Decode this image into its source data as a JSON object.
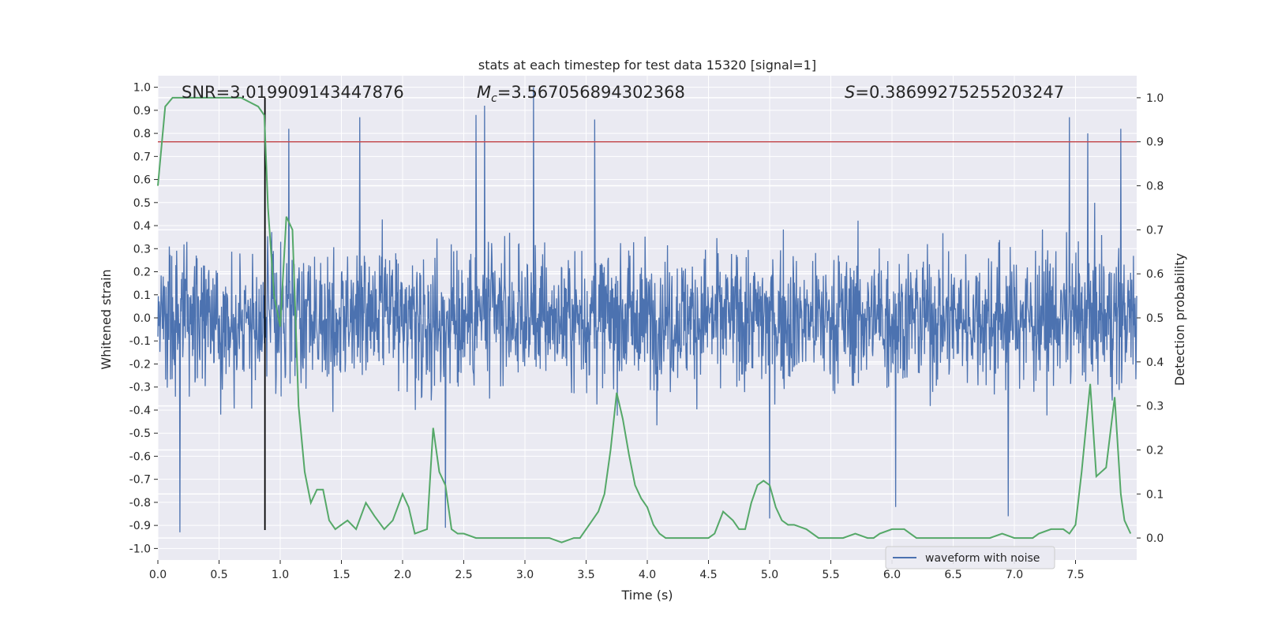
{
  "chart_data": {
    "type": "line",
    "title": "stats at each timestep for test data 15320 [signal=1]",
    "xlabel": "Time (s)",
    "ylabel_left": "Whitened strain",
    "ylabel_right": "Detection probability",
    "xlim": [
      0.0,
      8.0
    ],
    "ylim_left": [
      -1.05,
      1.05
    ],
    "ylim_right": [
      -0.05,
      1.05
    ],
    "x_ticks": [
      "0.0",
      "0.5",
      "1.0",
      "1.5",
      "2.0",
      "2.5",
      "3.0",
      "3.5",
      "4.0",
      "4.5",
      "5.0",
      "5.5",
      "6.0",
      "6.5",
      "7.0",
      "7.5"
    ],
    "y_ticks_left": [
      "1.0",
      "0.9",
      "0.8",
      "0.7",
      "0.6",
      "0.5",
      "0.4",
      "0.3",
      "0.2",
      "0.1",
      "0.0",
      "-0.1",
      "-0.2",
      "-0.3",
      "-0.4",
      "-0.5",
      "-0.6",
      "-0.7",
      "-0.8",
      "-0.9",
      "-1.0"
    ],
    "y_ticks_right": [
      "1.0",
      "0.9",
      "0.8",
      "0.7",
      "0.6",
      "0.5",
      "0.4",
      "0.3",
      "0.2",
      "0.1",
      "0.0"
    ],
    "grid": true,
    "legend_position": "lower-right",
    "annotations": {
      "snr": "SNR=3.019909143447876",
      "mc_symbol": "M",
      "mc_sub": "c",
      "mc_value": "=3.567056894302368",
      "s_symbol": "S",
      "s_value": "=0.38699275255203247"
    },
    "threshold_right": 0.9,
    "trigger_time": 0.875,
    "series": [
      {
        "name": "waveform with noise",
        "axis": "left",
        "kind": "noise-waveform",
        "color": "#4c72b0",
        "x_range": [
          0.0,
          8.0
        ],
        "amplitude_typical": 0.45,
        "extremes": [
          {
            "x": 0.18,
            "y": -0.93
          },
          {
            "x": 1.07,
            "y": 0.82
          },
          {
            "x": 1.65,
            "y": 0.87
          },
          {
            "x": 2.35,
            "y": -0.91
          },
          {
            "x": 2.6,
            "y": 0.88
          },
          {
            "x": 2.67,
            "y": 0.92
          },
          {
            "x": 3.07,
            "y": 1.0
          },
          {
            "x": 3.57,
            "y": 0.86
          },
          {
            "x": 5.0,
            "y": -0.87
          },
          {
            "x": 7.45,
            "y": 0.87
          },
          {
            "x": 7.6,
            "y": 0.8
          },
          {
            "x": 7.87,
            "y": 0.82
          },
          {
            "x": 6.03,
            "y": -0.82
          },
          {
            "x": 6.95,
            "y": -0.86
          }
        ]
      },
      {
        "name": "",
        "axis": "right",
        "color": "#55a868",
        "x": [
          0.0,
          0.06,
          0.12,
          0.2,
          0.3,
          0.4,
          0.5,
          0.6,
          0.68,
          0.75,
          0.82,
          0.87,
          0.9,
          0.95,
          1.0,
          1.05,
          1.1,
          1.15,
          1.2,
          1.25,
          1.3,
          1.35,
          1.4,
          1.45,
          1.5,
          1.55,
          1.62,
          1.7,
          1.77,
          1.85,
          1.92,
          2.0,
          2.05,
          2.1,
          2.2,
          2.25,
          2.3,
          2.35,
          2.4,
          2.45,
          2.5,
          2.6,
          2.7,
          2.8,
          2.9,
          3.0,
          3.1,
          3.2,
          3.3,
          3.4,
          3.45,
          3.5,
          3.55,
          3.6,
          3.65,
          3.7,
          3.75,
          3.8,
          3.85,
          3.9,
          3.95,
          4.0,
          4.05,
          4.1,
          4.15,
          4.2,
          4.3,
          4.4,
          4.5,
          4.55,
          4.62,
          4.7,
          4.75,
          4.8,
          4.85,
          4.9,
          4.95,
          5.0,
          5.05,
          5.1,
          5.15,
          5.2,
          5.3,
          5.4,
          5.5,
          5.6,
          5.7,
          5.8,
          5.85,
          5.9,
          6.0,
          6.1,
          6.15,
          6.2,
          6.3,
          6.4,
          6.5,
          6.6,
          6.7,
          6.8,
          6.9,
          7.0,
          7.05,
          7.15,
          7.2,
          7.3,
          7.4,
          7.45,
          7.5,
          7.55,
          7.62,
          7.67,
          7.75,
          7.82,
          7.87,
          7.9,
          7.95
        ],
        "y": [
          0.8,
          0.98,
          1.0,
          1.0,
          1.0,
          1.0,
          1.0,
          1.0,
          1.0,
          0.99,
          0.98,
          0.96,
          0.75,
          0.55,
          0.48,
          0.73,
          0.7,
          0.3,
          0.15,
          0.08,
          0.11,
          0.11,
          0.04,
          0.02,
          0.03,
          0.04,
          0.02,
          0.08,
          0.05,
          0.02,
          0.04,
          0.1,
          0.07,
          0.01,
          0.02,
          0.25,
          0.15,
          0.12,
          0.02,
          0.01,
          0.01,
          0.0,
          0.0,
          0.0,
          0.0,
          0.0,
          0.0,
          0.0,
          -0.01,
          0.0,
          0.0,
          0.02,
          0.04,
          0.06,
          0.1,
          0.2,
          0.33,
          0.27,
          0.19,
          0.12,
          0.09,
          0.07,
          0.03,
          0.01,
          0.0,
          0.0,
          0.0,
          0.0,
          0.0,
          0.01,
          0.06,
          0.04,
          0.02,
          0.02,
          0.08,
          0.12,
          0.13,
          0.12,
          0.07,
          0.04,
          0.03,
          0.03,
          0.02,
          0.0,
          0.0,
          0.0,
          0.01,
          0.0,
          0.0,
          0.01,
          0.02,
          0.02,
          0.01,
          0.0,
          0.0,
          0.0,
          0.0,
          0.0,
          0.0,
          0.0,
          0.01,
          0.0,
          0.0,
          0.0,
          0.01,
          0.02,
          0.02,
          0.01,
          0.03,
          0.15,
          0.35,
          0.14,
          0.16,
          0.32,
          0.1,
          0.04,
          0.01
        ]
      }
    ]
  }
}
